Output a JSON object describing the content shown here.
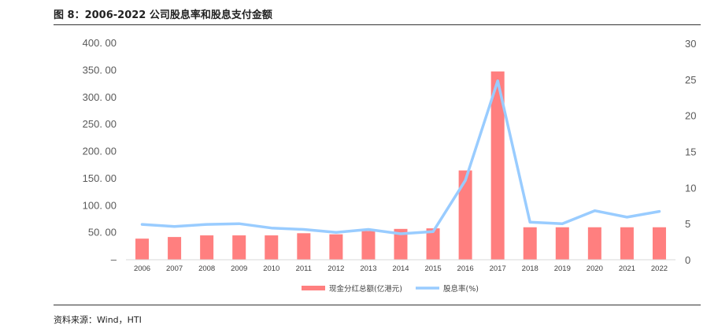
{
  "figure": {
    "title": "图 8：2006-2022 公司股息率和股息支付金额",
    "source": "资料来源：Wind，HTI"
  },
  "chart_data": {
    "type": "bar+line",
    "categories": [
      "2006",
      "2007",
      "2008",
      "2009",
      "2010",
      "2011",
      "2012",
      "2013",
      "2014",
      "2015",
      "2016",
      "2017",
      "2018",
      "2019",
      "2020",
      "2021",
      "2022"
    ],
    "series": [
      {
        "name": "现金分红总额(亿港元)",
        "type": "bar",
        "axis": "left",
        "color": "#ff7f7f",
        "values": [
          39,
          42,
          45,
          45,
          45,
          49,
          47,
          53,
          57,
          58,
          165,
          348,
          60,
          60,
          60,
          60,
          60
        ]
      },
      {
        "name": "股息率(%)",
        "type": "line",
        "axis": "right",
        "color": "#99ccff",
        "values": [
          4.9,
          4.6,
          4.9,
          5.0,
          4.4,
          4.2,
          3.8,
          4.2,
          3.6,
          3.9,
          11.0,
          24.8,
          5.2,
          5.0,
          6.8,
          5.9,
          6.7
        ]
      }
    ],
    "y_left": {
      "ylim": [
        0,
        400
      ],
      "ticks": [
        0,
        50,
        100,
        150,
        200,
        250,
        300,
        350,
        400
      ],
      "tick_labels": [
        "–",
        "50. 00",
        "100. 00",
        "150. 00",
        "200. 00",
        "250. 00",
        "300. 00",
        "350. 00",
        "400. 00"
      ]
    },
    "y_right": {
      "ylim": [
        0,
        30
      ],
      "ticks": [
        0,
        5,
        10,
        15,
        20,
        25,
        30
      ],
      "tick_labels": [
        "0",
        "5",
        "10",
        "15",
        "20",
        "25",
        "30"
      ]
    },
    "grid": false,
    "legend_position": "bottom"
  }
}
